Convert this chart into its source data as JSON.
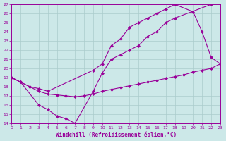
{
  "xlabel": "Windchill (Refroidissement éolien,°C)",
  "bg_color": "#cce8e8",
  "grid_color": "#aacccc",
  "line_color": "#990099",
  "xlim": [
    0,
    23
  ],
  "ylim": [
    14,
    27
  ],
  "xticks": [
    0,
    1,
    2,
    3,
    4,
    5,
    6,
    7,
    8,
    9,
    10,
    11,
    12,
    13,
    14,
    15,
    16,
    17,
    18,
    19,
    20,
    21,
    22,
    23
  ],
  "yticks": [
    14,
    15,
    16,
    17,
    18,
    19,
    20,
    21,
    22,
    23,
    24,
    25,
    26,
    27
  ],
  "series1_x": [
    0,
    1,
    3,
    4,
    5,
    6,
    7,
    9,
    10,
    11,
    12,
    13,
    14,
    15,
    16,
    17,
    18,
    22
  ],
  "series1_y": [
    19,
    18.5,
    16,
    15.5,
    14.8,
    14.5,
    14,
    17.5,
    19.5,
    21,
    21.5,
    22,
    22.5,
    23.5,
    24,
    25,
    25.5,
    27
  ],
  "series2_x": [
    0,
    2,
    3,
    4,
    9,
    10,
    11,
    12,
    13,
    14,
    15,
    16,
    17,
    18,
    20,
    21,
    22,
    23
  ],
  "series2_y": [
    19,
    18,
    17.8,
    17.5,
    19.8,
    20.5,
    22.5,
    23.2,
    24.5,
    25,
    25.5,
    26,
    26.5,
    27,
    26.2,
    24,
    21.2,
    20.5
  ],
  "series3_x": [
    0,
    1,
    2,
    3,
    4,
    5,
    6,
    7,
    8,
    9,
    10,
    11,
    12,
    13,
    14,
    15,
    16,
    17,
    18,
    19,
    20,
    21,
    22,
    23
  ],
  "series3_y": [
    19,
    18.5,
    18,
    17.5,
    17.2,
    17.1,
    17.0,
    16.9,
    17.0,
    17.2,
    17.5,
    17.7,
    17.9,
    18.1,
    18.3,
    18.5,
    18.7,
    18.9,
    19.1,
    19.3,
    19.6,
    19.8,
    20.0,
    20.5
  ]
}
